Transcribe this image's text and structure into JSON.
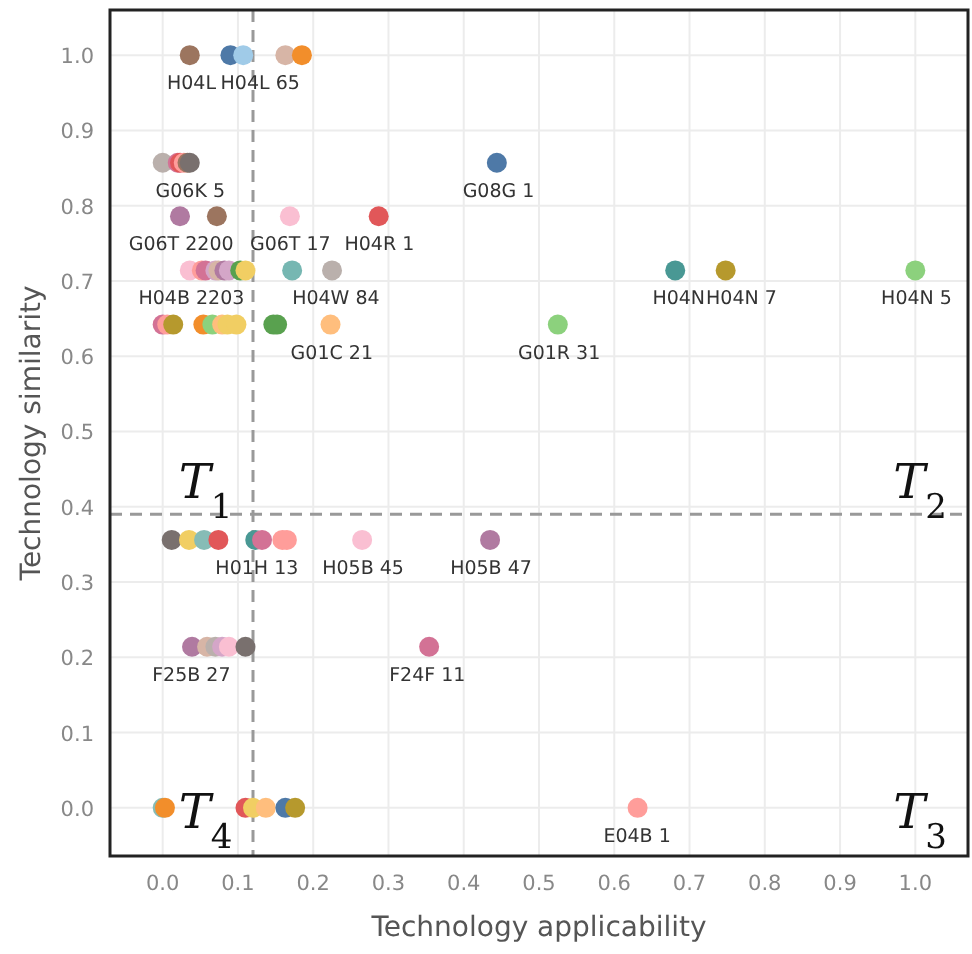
{
  "chart_data": {
    "type": "scatter",
    "xlabel": "Technology applicability",
    "ylabel": "Technology similarity",
    "xlim": [
      -0.07,
      1.07
    ],
    "ylim": [
      -0.064,
      1.06
    ],
    "xticks": [
      {
        "value": 0,
        "label": "0.0"
      },
      {
        "value": 0.1,
        "label": "0.1"
      },
      {
        "value": 0.2,
        "label": "0.2"
      },
      {
        "value": 0.3,
        "label": "0.3"
      },
      {
        "value": 0.4,
        "label": "0.4"
      },
      {
        "value": 0.5,
        "label": "0.5"
      },
      {
        "value": 0.6,
        "label": "0.6"
      },
      {
        "value": 0.7,
        "label": "0.7"
      },
      {
        "value": 0.8,
        "label": "0.8"
      },
      {
        "value": 0.9,
        "label": "0.9"
      },
      {
        "value": 1,
        "label": "1.0"
      }
    ],
    "yticks": [
      {
        "value": 0,
        "label": "0.0"
      },
      {
        "value": 0.1,
        "label": "0.1"
      },
      {
        "value": 0.2,
        "label": "0.2"
      },
      {
        "value": 0.3,
        "label": "0.3"
      },
      {
        "value": 0.4,
        "label": "0.4"
      },
      {
        "value": 0.5,
        "label": "0.5"
      },
      {
        "value": 0.6,
        "label": "0.6"
      },
      {
        "value": 0.7,
        "label": "0.7"
      },
      {
        "value": 0.8,
        "label": "0.8"
      },
      {
        "value": 0.9,
        "label": "0.9"
      },
      {
        "value": 1,
        "label": "1.0"
      }
    ],
    "grid": true,
    "marker": "circle",
    "x": [
      0.036,
      0.09,
      0.107,
      0.163,
      0.185,
      0.0,
      0.02,
      0.023,
      0.028,
      0.033,
      0.036,
      0.444,
      0.023,
      0.072,
      0.169,
      0.287,
      0.036,
      0.052,
      0.057,
      0.07,
      0.074,
      0.082,
      0.088,
      0.103,
      0.11,
      0.172,
      0.225,
      0.681,
      0.748,
      1.0,
      0.0,
      0.006,
      0.014,
      0.054,
      0.066,
      0.079,
      0.086,
      0.098,
      0.147,
      0.152,
      0.223,
      0.525,
      0.012,
      0.035,
      0.055,
      0.074,
      0.123,
      0.132,
      0.159,
      0.165,
      0.265,
      0.435,
      0.039,
      0.059,
      0.07,
      0.079,
      0.088,
      0.11,
      0.354,
      0.0,
      0.003,
      0.11,
      0.12,
      0.137,
      0.163,
      0.176,
      0.631
    ],
    "values": [
      1.0,
      1.0,
      1.0,
      1.0,
      1.0,
      0.857,
      0.857,
      0.857,
      0.857,
      0.857,
      0.857,
      0.857,
      0.786,
      0.786,
      0.786,
      0.786,
      0.714,
      0.714,
      0.714,
      0.714,
      0.714,
      0.714,
      0.714,
      0.714,
      0.714,
      0.714,
      0.714,
      0.714,
      0.714,
      0.714,
      0.642,
      0.642,
      0.642,
      0.642,
      0.642,
      0.642,
      0.642,
      0.642,
      0.642,
      0.642,
      0.642,
      0.642,
      0.356,
      0.356,
      0.356,
      0.356,
      0.356,
      0.356,
      0.356,
      0.356,
      0.356,
      0.356,
      0.214,
      0.214,
      0.214,
      0.214,
      0.214,
      0.214,
      0.214,
      0.0,
      0.0,
      0.0,
      0.0,
      0.0,
      0.0,
      0.0,
      0.0
    ],
    "colors": [
      "#9c755f",
      "#4e79a7",
      "#a0cbe8",
      "#d7b5a6",
      "#f28e2b",
      "#bab0ac",
      "#d37295",
      "#e15759",
      "#ff9d9a",
      "#9c755f",
      "#79706e",
      "#4e79a7",
      "#b07aa1",
      "#9c755f",
      "#fabfd2",
      "#e15759",
      "#fabfd2",
      "#ff9d9a",
      "#d37295",
      "#d4a6c8",
      "#d7b5a6",
      "#b07aa1",
      "#d4a6c8",
      "#59a14f",
      "#f1ce63",
      "#76b7b2",
      "#bab0ac",
      "#499894",
      "#b6992d",
      "#8cd17d",
      "#d37295",
      "#ff9d9a",
      "#b6992d",
      "#f28e2b",
      "#8cd17d",
      "#ffbe7d",
      "#f1ce63",
      "#f1ce63",
      "#59a14f",
      "#59a14f",
      "#ffbe7d",
      "#8cd17d",
      "#79706e",
      "#f1ce63",
      "#86bcb6",
      "#e15759",
      "#499894",
      "#d37295",
      "#ff9d9a",
      "#ff9d9a",
      "#fabfd2",
      "#b07aa1",
      "#b07aa1",
      "#d7b5a6",
      "#bab0ac",
      "#d4a6c8",
      "#fabfd2",
      "#79706e",
      "#d37295",
      "#86bcb6",
      "#f28e2b",
      "#e15759",
      "#f1ce63",
      "#ffbe7d",
      "#4e79a7",
      "#b6992d",
      "#ff9d9a"
    ],
    "ref_lines": [
      {
        "axis": "x",
        "value": 0.12,
        "color": "#999999",
        "line_style": "dashed"
      },
      {
        "axis": "y",
        "value": 0.39,
        "color": "#999999",
        "line_style": "dashed"
      }
    ],
    "annotations": [
      {
        "text": "H04L",
        "x": 0.036,
        "y": 1.0
      },
      {
        "text": "H04L 65",
        "x": 0.09,
        "y": 1.0
      },
      {
        "text": "G06K 5",
        "x": 0.036,
        "y": 0.857
      },
      {
        "text": "G08G 1",
        "x": 0.444,
        "y": 0.857
      },
      {
        "text": "G06T 2200",
        "x": 0.023,
        "y": 0.786
      },
      {
        "text": "G06T 17",
        "x": 0.169,
        "y": 0.786
      },
      {
        "text": "H04R 1",
        "x": 0.287,
        "y": 0.786
      },
      {
        "text": "H04B 2203",
        "x": 0.036,
        "y": 0.714
      },
      {
        "text": "H04W 84",
        "x": 0.225,
        "y": 0.714
      },
      {
        "text": "H04N",
        "x": 0.681,
        "y": 0.714
      },
      {
        "text": "H04N 7",
        "x": 0.748,
        "y": 0.714
      },
      {
        "text": "H04N 5",
        "x": 1.0,
        "y": 0.714
      },
      {
        "text": "G01C 21",
        "x": 0.223,
        "y": 0.642
      },
      {
        "text": "G01R 31",
        "x": 0.525,
        "y": 0.642
      },
      {
        "text": "H01H 13",
        "x": 0.123,
        "y": 0.356
      },
      {
        "text": "H05B 45",
        "x": 0.265,
        "y": 0.356
      },
      {
        "text": "H05B 47",
        "x": 0.435,
        "y": 0.356
      },
      {
        "text": "F25B 27",
        "x": 0.039,
        "y": 0.214
      },
      {
        "text": "F24F 11",
        "x": 0.354,
        "y": 0.214
      },
      {
        "text": "E04B 1",
        "x": 0.631,
        "y": 0.0
      },
      "T$_{1}$",
      "T$_{2}$",
      "T$_{3}$",
      "T$_{4}$"
    ]
  }
}
